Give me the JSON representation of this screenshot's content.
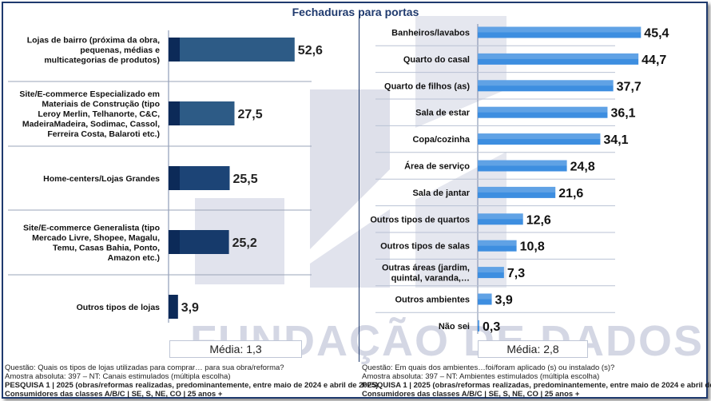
{
  "title": "Fechaduras para portas",
  "chart_data": [
    {
      "type": "bar",
      "orientation": "horizontal",
      "categories": [
        "Lojas de bairro (próxima da obra, pequenas, médias e multicategorias de produtos)",
        "Site/E-commerce Especializado em Materiais de Construção (tipo Leroy Merlin, Telhanorte, C&C, MadeiraMadeira, Sodimac, Cassol, Ferreira Costa, Balaroti etc.)",
        "Home-centers/Lojas Grandes",
        "Site/E-commerce Generalista (tipo Mercado Livre, Shopee, Magalu, Temu, Casas Bahia, Ponto, Amazon etc.)",
        "Outros tipos de lojas"
      ],
      "category_lines": [
        [
          "Lojas de bairro (próxima da obra,",
          "pequenas, médias e",
          "multicategorias de produtos)"
        ],
        [
          "Site/E-commerce Especializado em",
          "Materiais de Construção (tipo",
          "Leroy Merlin, Telhanorte, C&C,",
          "MadeiraMadeira, Sodimac, Cassol,",
          "Ferreira Costa, Balaroti etc.)"
        ],
        [
          "Home-centers/Lojas Grandes"
        ],
        [
          "Site/E-commerce Generalista (tipo",
          "Mercado Livre, Shopee, Magalu,",
          "Temu, Casas Bahia, Ponto,",
          "Amazon etc.)"
        ],
        [
          "Outros tipos de lojas"
        ]
      ],
      "values": [
        52.6,
        27.5,
        25.5,
        25.2,
        3.9
      ],
      "value_labels": [
        "52,6",
        "27,5",
        "25,5",
        "25,2",
        "3,9"
      ],
      "bar_colors": [
        "#2d5b86",
        "#2d5b86",
        "#1c4476",
        "#163a6b",
        "#0f2f62"
      ],
      "xlim": [
        0,
        100
      ],
      "grid": false,
      "media_label": "Média: 1,3"
    },
    {
      "type": "bar",
      "orientation": "horizontal",
      "categories": [
        "Banheiros/lavabos",
        "Quarto do casal",
        "Quarto de filhos (as)",
        "Sala  de estar",
        "Copa/cozinha",
        "Área de serviço",
        "Sala de jantar",
        "Outros tipos de quartos",
        "Outros tipos de salas",
        "Outras áreas (jardim, quintal, varanda,…",
        "Outros ambientes",
        "Não sei"
      ],
      "category_lines": [
        [
          "Banheiros/lavabos"
        ],
        [
          "Quarto do casal"
        ],
        [
          "Quarto de filhos (as)"
        ],
        [
          "Sala  de estar"
        ],
        [
          "Copa/cozinha"
        ],
        [
          "Área de serviço"
        ],
        [
          "Sala de jantar"
        ],
        [
          "Outros tipos de quartos"
        ],
        [
          "Outros tipos de salas"
        ],
        [
          "Outras áreas (jardim,",
          "quintal, varanda,…"
        ],
        [
          "Outros ambientes"
        ],
        [
          "Não sei"
        ]
      ],
      "values": [
        45.4,
        44.7,
        37.7,
        36.1,
        34.1,
        24.8,
        21.6,
        12.6,
        10.8,
        7.3,
        3.9,
        0.3
      ],
      "value_labels": [
        "45,4",
        "44,7",
        "37,7",
        "36,1",
        "34,1",
        "24,8",
        "21,6",
        "12,6",
        "10,8",
        "7,3",
        "3,9",
        "0,3"
      ],
      "bar_color": "#3d8ee0",
      "xlim": [
        0,
        100
      ],
      "grid": false,
      "media_label": "Média: 2,8"
    }
  ],
  "footer_left": {
    "question": "Questão: Quais os tipos de lojas utilizadas para comprar… para sua obra/reforma?",
    "sample": "Amostra absoluta: 397 – NT: Canais estimulados (múltipla escolha)",
    "research": "PESQUISA 1 | 2025 (obras/reformas realizadas, predominantemente, entre maio de 2024 e abril de 2025)",
    "consumers": "Consumidores das classes A/B/C | SE, S, NE, CO | 25 anos +"
  },
  "footer_right": {
    "question": "Questão: Em quais dos ambientes…foi/foram aplicado (s) ou instalado (s)?",
    "sample": "Amostra absoluta: 397 – NT: Ambientes estimulados (múltipla escolha)",
    "research": "PESQUISA 1 | 2025 (obras/reformas realizadas, predominantemente, entre maio de 2024 e abril de 2025)",
    "consumers": "Consumidores das classes A/B/C | SE, S, NE, CO | 25 anos +"
  },
  "watermark": "FUNDAÇÃO DE DADOS"
}
